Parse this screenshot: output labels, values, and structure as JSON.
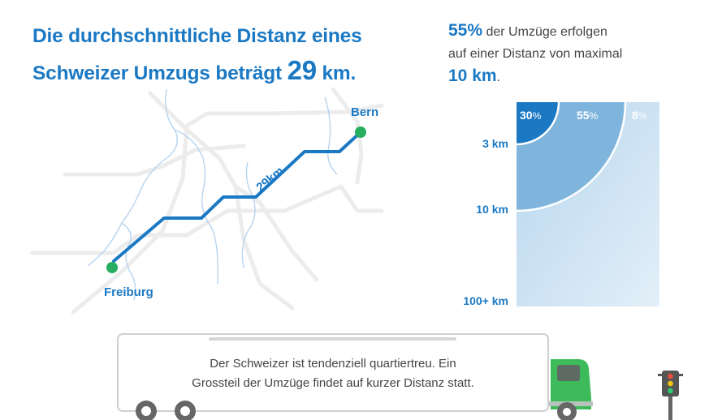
{
  "headline": {
    "line1": "Die durchschnittliche Distanz eines",
    "line2_prefix": "Schweizer Umzugs beträgt",
    "line2_value": "29",
    "line2_unit": "km."
  },
  "stat": {
    "percent": "55%",
    "text1": "der Umzüge erfolgen",
    "text2": "auf einer Distanz von maximal",
    "distance": "10 km",
    "period": "."
  },
  "map": {
    "cities": {
      "start": "Freiburg",
      "end": "Bern"
    },
    "distance_label": "29km"
  },
  "distance_chart": {
    "percentages": [
      {
        "value": "30",
        "unit": "%"
      },
      {
        "value": "55",
        "unit": "%"
      },
      {
        "value": "8",
        "unit": "%"
      }
    ],
    "y_labels": [
      "3 km",
      "10 km",
      "100+ km"
    ]
  },
  "colors": {
    "accent": "#1b79c4",
    "green": "#27ae60",
    "truck": "#3dbb5a"
  },
  "caption": {
    "line1": "Der Schweizer ist tendenziell quartiertreu. Ein",
    "line2": "Grossteil der Umzüge findet auf kurzer Distanz statt."
  }
}
